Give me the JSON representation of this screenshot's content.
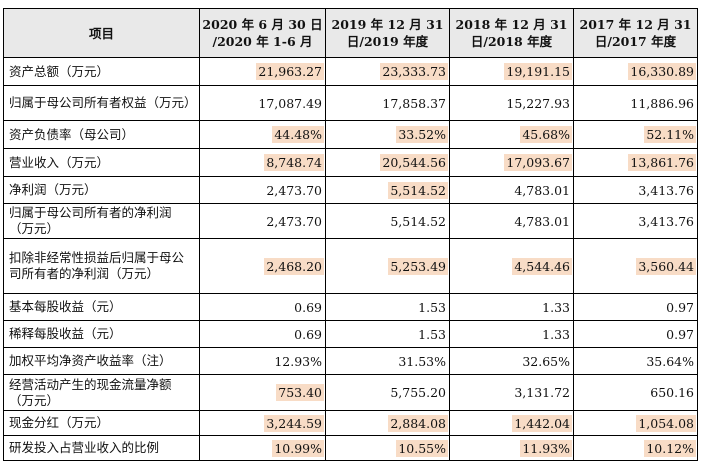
{
  "table": {
    "headers": [
      {
        "text": "项目"
      },
      {
        "line1": "2020 年 6 月 30 日",
        "line2": "/2020 年 1-6 月"
      },
      {
        "line1": "2019 年 12 月 31",
        "line2": "日/2019 年度"
      },
      {
        "line1": "2018 年 12 月 31",
        "line2": "日/2018 年度"
      },
      {
        "line1": "2017 年 12 月 31",
        "line2": "日/2017 年度"
      }
    ],
    "highlight_color": "#f8dcc6",
    "rows": [
      {
        "label": "资产总额（万元）",
        "height": 28,
        "cells": [
          {
            "v": "21,963.27",
            "hl": true
          },
          {
            "v": "23,333.73",
            "hl": true
          },
          {
            "v": "19,191.15",
            "hl": true
          },
          {
            "v": "16,330.89",
            "hl": true
          }
        ]
      },
      {
        "label": "归属于母公司所有者权益（万元）",
        "height": 35,
        "cells": [
          {
            "v": "17,087.49",
            "hl": false
          },
          {
            "v": "17,858.37",
            "hl": false
          },
          {
            "v": "15,227.93",
            "hl": false
          },
          {
            "v": "11,886.96",
            "hl": false
          }
        ]
      },
      {
        "label": "资产负债率（母公司）",
        "height": 28,
        "cells": [
          {
            "v": "44.48%",
            "hl": true
          },
          {
            "v": "33.52%",
            "hl": true
          },
          {
            "v": "45.68%",
            "hl": true
          },
          {
            "v": "52.11%",
            "hl": true
          }
        ]
      },
      {
        "label": "营业收入（万元）",
        "height": 28,
        "cells": [
          {
            "v": "8,748.74",
            "hl": true
          },
          {
            "v": "20,544.56",
            "hl": true
          },
          {
            "v": "17,093.67",
            "hl": true
          },
          {
            "v": "13,861.76",
            "hl": true
          }
        ]
      },
      {
        "label": "净利润（万元）",
        "height": 27,
        "cells": [
          {
            "v": "2,473.70",
            "hl": false
          },
          {
            "v": "5,514.52",
            "hl": true
          },
          {
            "v": "4,783.01",
            "hl": false
          },
          {
            "v": "3,413.76",
            "hl": false
          }
        ]
      },
      {
        "label": "归属于母公司所有者的净利润（万元）",
        "height": 35,
        "cells": [
          {
            "v": "2,473.70",
            "hl": false
          },
          {
            "v": "5,514.52",
            "hl": false
          },
          {
            "v": "4,783.01",
            "hl": false
          },
          {
            "v": "3,413.76",
            "hl": false
          }
        ]
      },
      {
        "label": "扣除非经常性损益后归属于母公司所有者的净利润（万元）",
        "height": 55,
        "cells": [
          {
            "v": "2,468.20",
            "hl": true
          },
          {
            "v": "5,253.49",
            "hl": true
          },
          {
            "v": "4,544.46",
            "hl": true
          },
          {
            "v": "3,560.44",
            "hl": true
          }
        ]
      },
      {
        "label": "基本每股收益（元）",
        "height": 27,
        "cells": [
          {
            "v": "0.69",
            "hl": false
          },
          {
            "v": "1.53",
            "hl": false
          },
          {
            "v": "1.33",
            "hl": false
          },
          {
            "v": "0.97",
            "hl": false
          }
        ]
      },
      {
        "label": "稀释每股收益（元）",
        "height": 27,
        "cells": [
          {
            "v": "0.69",
            "hl": false
          },
          {
            "v": "1.53",
            "hl": false
          },
          {
            "v": "1.33",
            "hl": false
          },
          {
            "v": "0.97",
            "hl": false
          }
        ]
      },
      {
        "label": "加权平均净资产收益率（注）",
        "height": 27,
        "cells": [
          {
            "v": "12.93%",
            "hl": false
          },
          {
            "v": "31.53%",
            "hl": false
          },
          {
            "v": "32.65%",
            "hl": false
          },
          {
            "v": "35.64%",
            "hl": false
          }
        ]
      },
      {
        "label": "经营活动产生的现金流量净额（万元）",
        "height": 36,
        "cells": [
          {
            "v": "753.40",
            "hl": true
          },
          {
            "v": "5,755.20",
            "hl": false
          },
          {
            "v": "3,131.72",
            "hl": false
          },
          {
            "v": "650.16",
            "hl": false
          }
        ]
      },
      {
        "label": "现金分红（万元）",
        "height": 25,
        "cells": [
          {
            "v": "3,244.59",
            "hl": true
          },
          {
            "v": "2,884.08",
            "hl": true
          },
          {
            "v": "1,442.04",
            "hl": true
          },
          {
            "v": "1,054.08",
            "hl": true
          }
        ]
      },
      {
        "label": "研发投入占营业收入的比例",
        "height": 25,
        "cells": [
          {
            "v": "10.99%",
            "hl": true
          },
          {
            "v": "10.55%",
            "hl": true
          },
          {
            "v": "11.93%",
            "hl": true
          },
          {
            "v": "10.12%",
            "hl": true
          }
        ]
      }
    ]
  }
}
